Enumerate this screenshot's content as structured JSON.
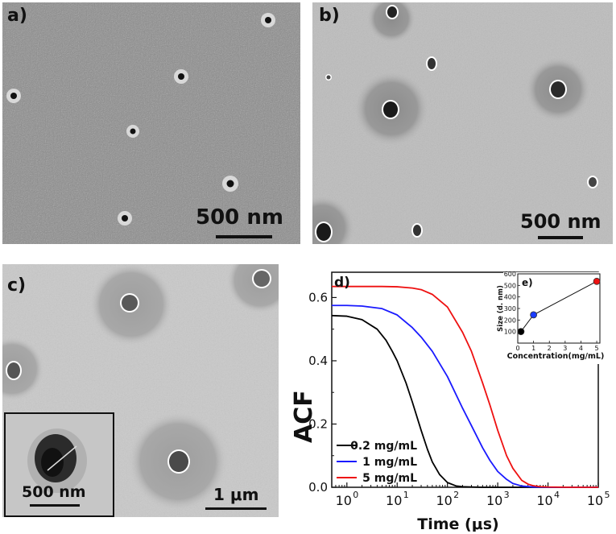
{
  "panel_a": {
    "label": "a)",
    "scale_label": "500 nm"
  },
  "panel_b": {
    "label": "b)",
    "scale_label": "500 nm"
  },
  "panel_c": {
    "label": "c)",
    "scale_label": "1 μm",
    "inset_scale_label": "500 nm"
  },
  "chart_data": [
    {
      "panel_label": "d)",
      "type": "line",
      "xlabel": "Time (μs)",
      "ylabel": "ACF",
      "x_scale": "log",
      "xlim": [
        0.5,
        100000
      ],
      "ylim": [
        0,
        0.68
      ],
      "x_ticks": [
        "10",
        "10",
        "10",
        "10",
        "10",
        "10"
      ],
      "x_tick_exponents": [
        "0",
        "1",
        "2",
        "3",
        "4",
        "5"
      ],
      "y_ticks": [
        "0.0",
        "0.2",
        "0.4",
        "0.6"
      ],
      "legend_placement": "bottom-left",
      "series": [
        {
          "name": "0.2 mg/mL",
          "color": "#000000",
          "x": [
            0.5,
            1,
            2,
            4,
            6,
            8,
            10,
            15,
            20,
            30,
            40,
            50,
            70,
            100,
            150,
            200,
            300,
            500,
            1000,
            10000,
            100000
          ],
          "y": [
            0.543,
            0.541,
            0.53,
            0.5,
            0.465,
            0.43,
            0.4,
            0.33,
            0.27,
            0.18,
            0.12,
            0.08,
            0.04,
            0.015,
            0.004,
            0.002,
            0.001,
            0.0,
            0.0,
            0.0,
            0.0
          ]
        },
        {
          "name": "1 mg/mL",
          "color": "#1a1aff",
          "x": [
            0.5,
            1,
            2,
            5,
            10,
            20,
            30,
            50,
            100,
            200,
            300,
            500,
            700,
            1000,
            1500,
            2000,
            3000,
            5000,
            10000,
            100000
          ],
          "y": [
            0.575,
            0.575,
            0.573,
            0.565,
            0.545,
            0.505,
            0.475,
            0.43,
            0.35,
            0.25,
            0.195,
            0.125,
            0.085,
            0.05,
            0.025,
            0.012,
            0.004,
            0.001,
            0.0,
            0.0
          ]
        },
        {
          "name": "5 mg/mL",
          "color": "#ee1111",
          "x": [
            0.5,
            1,
            5,
            10,
            20,
            30,
            50,
            100,
            200,
            300,
            500,
            700,
            1000,
            1500,
            2000,
            3000,
            4000,
            5000,
            7000,
            10000,
            30000,
            100000
          ],
          "y": [
            0.635,
            0.635,
            0.635,
            0.634,
            0.63,
            0.625,
            0.61,
            0.57,
            0.49,
            0.43,
            0.33,
            0.26,
            0.18,
            0.1,
            0.06,
            0.022,
            0.01,
            0.005,
            0.002,
            0.001,
            0.0,
            0.0
          ]
        }
      ]
    },
    {
      "panel_label": "e)",
      "type": "scatter",
      "xlabel": "Concentration(mg/mL)",
      "ylabel": "Size (d. nm)",
      "xlim": [
        0,
        5.2
      ],
      "ylim": [
        0,
        600
      ],
      "x_ticks": [
        "0",
        "1",
        "2",
        "3",
        "4",
        "5"
      ],
      "y_ticks": [
        "100",
        "200",
        "300",
        "400",
        "500",
        "600"
      ],
      "series": [
        {
          "x": [
            0.2,
            1,
            5
          ],
          "y": [
            100,
            245,
            535
          ],
          "colors": [
            "#000000",
            "#1a3cff",
            "#ee1111"
          ]
        }
      ]
    }
  ]
}
